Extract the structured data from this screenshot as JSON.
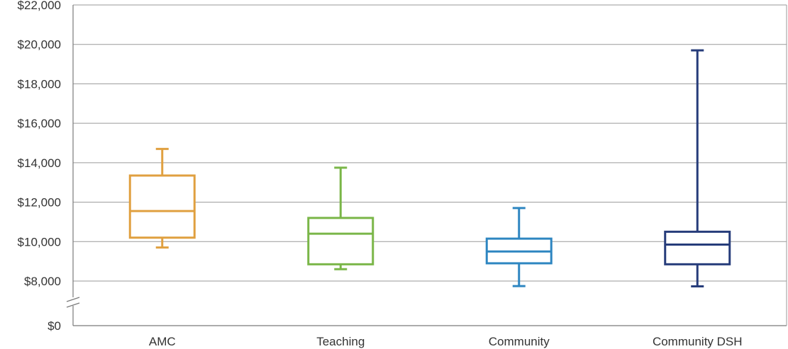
{
  "chart_data": {
    "type": "boxplot",
    "y_tick_labels": [
      "$0",
      "$8,000",
      "$10,000",
      "$12,000",
      "$14,000",
      "$16,000",
      "$18,000",
      "$20,000",
      "$22,000"
    ],
    "y_ticks": [
      0,
      8000,
      10000,
      12000,
      14000,
      16000,
      18000,
      20000,
      22000
    ],
    "ylim": [
      0,
      22000
    ],
    "axis_break": "between $0 and $8,000",
    "grid": true,
    "categories": [
      "AMC",
      "Teaching",
      "Community",
      "Community DSH"
    ],
    "boxes": [
      {
        "category": "AMC",
        "min": 9700,
        "q1": 10200,
        "median": 11550,
        "q3": 13350,
        "max": 14700,
        "color": "#e0a040"
      },
      {
        "category": "Teaching",
        "min": 8600,
        "q1": 8850,
        "median": 10400,
        "q3": 11200,
        "max": 13750,
        "color": "#7ab648"
      },
      {
        "category": "Community",
        "min": 7100,
        "q1": 8900,
        "median": 9500,
        "q3": 10150,
        "max": 11700,
        "color": "#2e86c1"
      },
      {
        "category": "Community DSH",
        "min": 7050,
        "q1": 8850,
        "median": 9850,
        "q3": 10500,
        "max": 19700,
        "color": "#263c7a"
      }
    ]
  }
}
